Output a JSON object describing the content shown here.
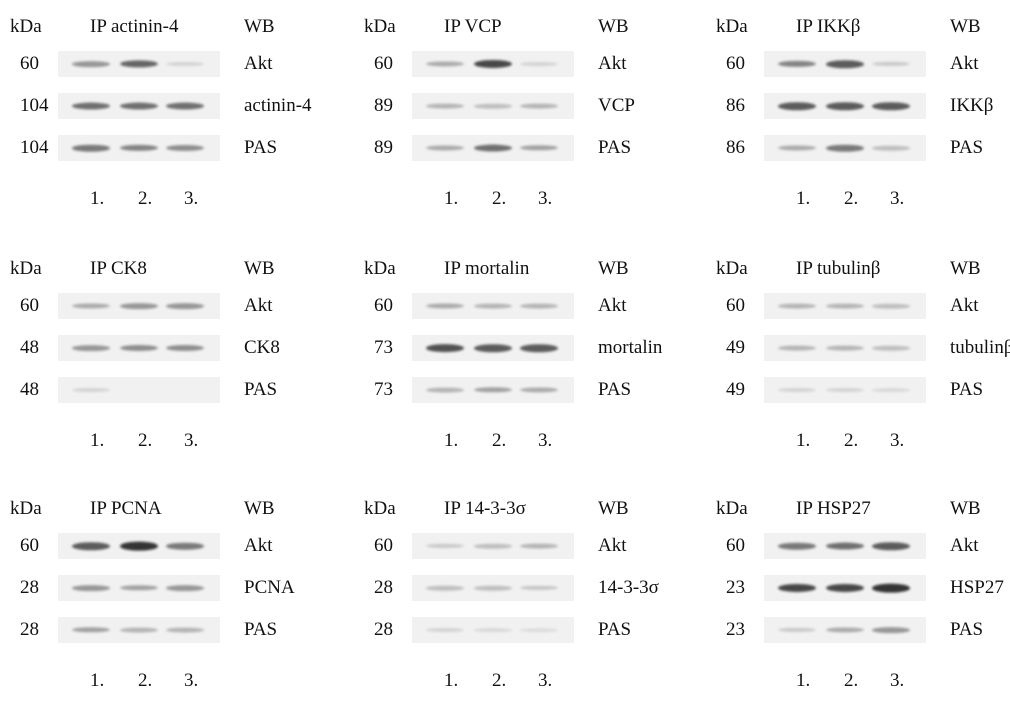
{
  "panels": [
    {
      "kda": "kDa",
      "ip": "IP actinin-4",
      "wb": "WB",
      "rows": [
        {
          "mw": "60",
          "ab": "Akt",
          "bands": [
            0.45,
            0.7,
            0.15
          ]
        },
        {
          "mw": "104",
          "ab": "actinin-4",
          "bands": [
            0.65,
            0.65,
            0.65
          ]
        },
        {
          "mw": "104",
          "ab": "PAS",
          "bands": [
            0.6,
            0.55,
            0.5
          ]
        }
      ],
      "lanes": [
        "1.",
        "2.",
        "3."
      ]
    },
    {
      "kda": "kDa",
      "ip": "IP VCP",
      "wb": "WB",
      "rows": [
        {
          "mw": "60",
          "ab": "Akt",
          "bands": [
            0.35,
            0.85,
            0.15
          ]
        },
        {
          "mw": "89",
          "ab": "VCP",
          "bands": [
            0.3,
            0.25,
            0.3
          ]
        },
        {
          "mw": "89",
          "ab": "PAS",
          "bands": [
            0.35,
            0.65,
            0.4
          ]
        }
      ],
      "lanes": [
        "1.",
        "2.",
        "3."
      ]
    },
    {
      "kda": "kDa",
      "ip": "IP IKKβ",
      "wb": "WB",
      "rows": [
        {
          "mw": "60",
          "ab": "Akt",
          "bands": [
            0.55,
            0.75,
            0.2
          ]
        },
        {
          "mw": "86",
          "ab": "IKKβ",
          "bands": [
            0.75,
            0.75,
            0.75
          ]
        },
        {
          "mw": "86",
          "ab": "PAS",
          "bands": [
            0.35,
            0.6,
            0.25
          ]
        }
      ],
      "lanes": [
        "1.",
        "2.",
        "3."
      ]
    },
    {
      "kda": "kDa",
      "ip": "IP CK8",
      "wb": "WB",
      "rows": [
        {
          "mw": "60",
          "ab": "Akt",
          "bands": [
            0.35,
            0.45,
            0.45
          ]
        },
        {
          "mw": "48",
          "ab": "CK8",
          "bands": [
            0.45,
            0.5,
            0.5
          ]
        },
        {
          "mw": "48",
          "ab": "PAS",
          "bands": [
            0.15,
            0,
            0
          ]
        }
      ],
      "lanes": [
        "1.",
        "2.",
        "3."
      ]
    },
    {
      "kda": "kDa",
      "ip": "IP mortalin",
      "wb": "WB",
      "rows": [
        {
          "mw": "60",
          "ab": "Akt",
          "bands": [
            0.35,
            0.3,
            0.3
          ]
        },
        {
          "mw": "73",
          "ab": "mortalin",
          "bands": [
            0.8,
            0.75,
            0.75
          ]
        },
        {
          "mw": "73",
          "ab": "PAS",
          "bands": [
            0.3,
            0.4,
            0.35
          ]
        }
      ],
      "lanes": [
        "1.",
        "2.",
        "3."
      ]
    },
    {
      "kda": "kDa",
      "ip": "IP tubulinβ",
      "wb": "WB",
      "rows": [
        {
          "mw": "60",
          "ab": "Akt",
          "bands": [
            0.3,
            0.3,
            0.25
          ]
        },
        {
          "mw": "49",
          "ab": "tubulinβ",
          "bands": [
            0.3,
            0.3,
            0.25
          ]
        },
        {
          "mw": "49",
          "ab": "PAS",
          "bands": [
            0.15,
            0.15,
            0.12
          ]
        }
      ],
      "lanes": [
        "1.",
        "2.",
        "3."
      ]
    },
    {
      "kda": "kDa",
      "ip": "IP PCNA",
      "wb": "WB",
      "rows": [
        {
          "mw": "60",
          "ab": "Akt",
          "bands": [
            0.75,
            0.95,
            0.6
          ]
        },
        {
          "mw": "28",
          "ab": "PCNA",
          "bands": [
            0.45,
            0.4,
            0.45
          ]
        },
        {
          "mw": "28",
          "ab": "PAS",
          "bands": [
            0.4,
            0.3,
            0.3
          ]
        }
      ],
      "lanes": [
        "1.",
        "2.",
        "3."
      ]
    },
    {
      "kda": "kDa",
      "ip": "IP 14-3-3σ",
      "wb": "WB",
      "rows": [
        {
          "mw": "60",
          "ab": "Akt",
          "bands": [
            0.2,
            0.25,
            0.3
          ]
        },
        {
          "mw": "28",
          "ab": "14-3-3σ",
          "bands": [
            0.25,
            0.25,
            0.22
          ]
        },
        {
          "mw": "28",
          "ab": "PAS",
          "bands": [
            0.15,
            0.12,
            0.1
          ]
        }
      ],
      "lanes": [
        "1.",
        "2.",
        "3."
      ]
    },
    {
      "kda": "kDa",
      "ip": "IP HSP27",
      "wb": "WB",
      "rows": [
        {
          "mw": "60",
          "ab": "Akt",
          "bands": [
            0.6,
            0.65,
            0.75
          ]
        },
        {
          "mw": "23",
          "ab": "HSP27",
          "bands": [
            0.85,
            0.85,
            0.95
          ]
        },
        {
          "mw": "23",
          "ab": "PAS",
          "bands": [
            0.2,
            0.35,
            0.45
          ]
        }
      ],
      "lanes": [
        "1.",
        "2.",
        "3."
      ]
    }
  ]
}
